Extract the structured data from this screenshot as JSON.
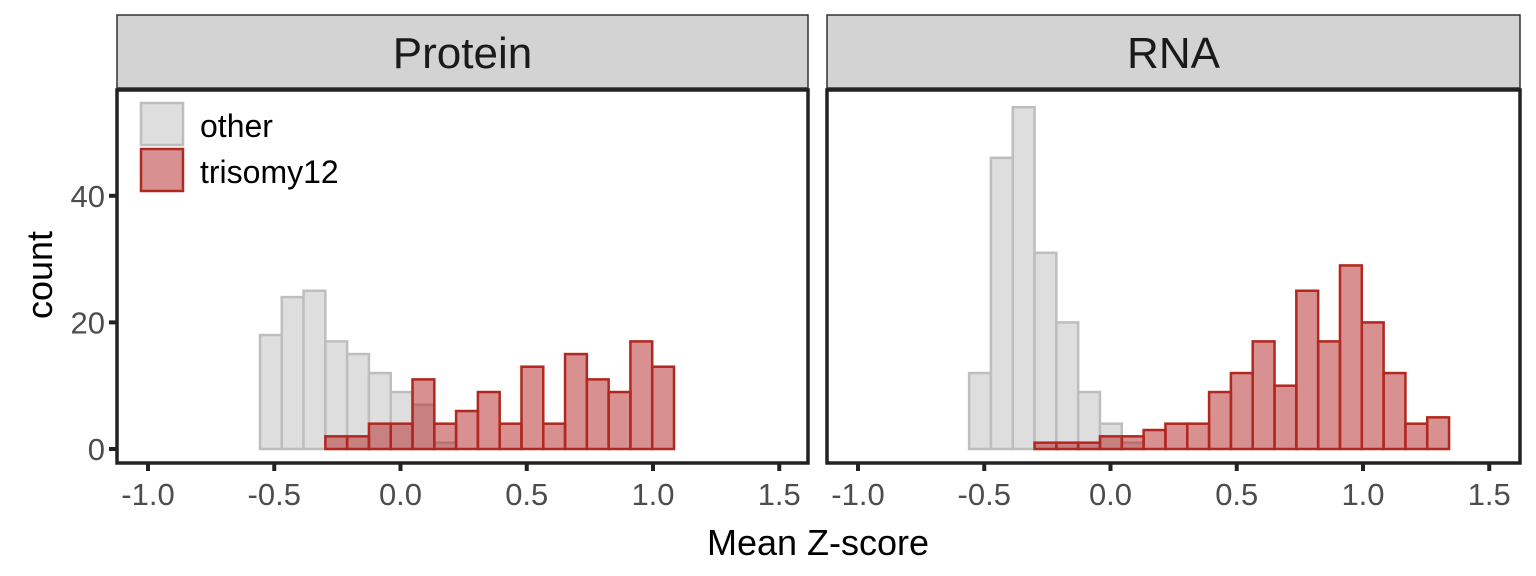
{
  "chart_data": [
    {
      "type": "histogram",
      "title": "Protein",
      "xlabel": "Mean Z-score",
      "ylabel": "count",
      "xlim": [
        -1.1,
        1.6
      ],
      "ylim": [
        -2.7,
        57
      ],
      "xticks": [
        "-1.0",
        "-0.5",
        "0.0",
        "0.5",
        "1.0",
        "1.5"
      ],
      "xtick_values": [
        -1.0,
        -0.5,
        0.0,
        0.5,
        1.0,
        1.5
      ],
      "yticks": [
        "0",
        "20",
        "40"
      ],
      "ytick_values": [
        0,
        20,
        40
      ],
      "bin_start": -0.988,
      "bin_width": 0.0863,
      "series": [
        {
          "name": "other",
          "fill": "#dedede",
          "stroke": "#bebebe",
          "values": [
            0,
            0,
            0,
            0,
            0,
            18,
            24,
            25,
            17,
            15,
            12,
            9,
            7,
            1,
            0,
            0,
            0,
            0,
            0,
            0,
            0,
            0,
            0,
            0,
            0,
            0,
            0,
            0
          ]
        },
        {
          "name": "trisomy12",
          "fill": "rgba(178,34,34,0.5)",
          "stroke": "#b0281f",
          "values": [
            0,
            0,
            0,
            0,
            0,
            0,
            0,
            0,
            2,
            2,
            4,
            4,
            11,
            4,
            6,
            9,
            4,
            13,
            4,
            15,
            11,
            9,
            17,
            13,
            0,
            0,
            0,
            0
          ]
        }
      ]
    },
    {
      "type": "histogram",
      "title": "RNA",
      "xlabel": "Mean Z-score",
      "ylabel": "count",
      "xlim": [
        -1.1,
        1.6
      ],
      "ylim": [
        -2.7,
        57
      ],
      "xticks": [
        "-1.0",
        "-0.5",
        "0.0",
        "0.5",
        "1.0",
        "1.5"
      ],
      "xtick_values": [
        -1.0,
        -0.5,
        0.0,
        0.5,
        1.0,
        1.5
      ],
      "bin_start": -0.992,
      "bin_width": 0.0864,
      "series": [
        {
          "name": "other",
          "fill": "#dedede",
          "stroke": "#bebebe",
          "values": [
            0,
            0,
            0,
            0,
            0,
            12,
            46,
            54,
            31,
            20,
            9,
            4,
            1,
            0,
            0,
            0,
            0,
            0,
            0,
            0,
            0,
            0,
            0,
            0,
            0,
            0,
            0,
            0
          ]
        },
        {
          "name": "trisomy12",
          "fill": "rgba(178,34,34,0.5)",
          "stroke": "#b0281f",
          "values": [
            0,
            0,
            0,
            0,
            0,
            0,
            0,
            0,
            1,
            1,
            1,
            2,
            2,
            3,
            4,
            4,
            9,
            12,
            17,
            10,
            25,
            17,
            29,
            20,
            12,
            4,
            5,
            0
          ]
        }
      ]
    }
  ],
  "legend": {
    "placement": "top-left",
    "items": [
      "other",
      "trisomy12"
    ]
  },
  "xlabel": "Mean Z-score",
  "ylabel": "count"
}
